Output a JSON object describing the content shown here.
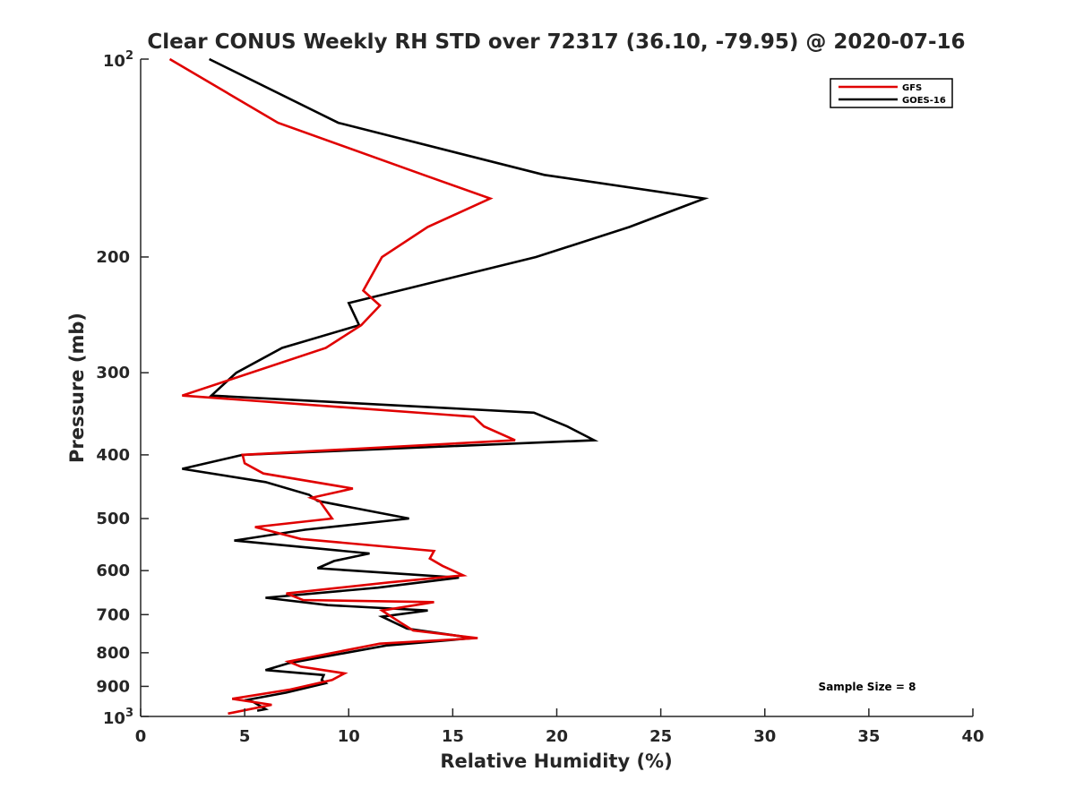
{
  "chart_data": {
    "type": "line",
    "title": "Clear CONUS Weekly RH STD over 72317 (36.10, -79.95) @ 2020-07-16",
    "xlabel": "Relative Humidity (%)",
    "ylabel": "Pressure (mb)",
    "xlim": [
      0,
      40
    ],
    "ylim": [
      100,
      1000
    ],
    "y_scale": "log",
    "y_reversed": true,
    "x_ticks": [
      "0",
      "5",
      "10",
      "15",
      "20",
      "25",
      "30",
      "35",
      "40"
    ],
    "y_ticks": [
      {
        "value": 100,
        "label": "10",
        "sup": "2"
      },
      {
        "value": 200,
        "label": "200"
      },
      {
        "value": 300,
        "label": "300"
      },
      {
        "value": 400,
        "label": "400"
      },
      {
        "value": 500,
        "label": "500"
      },
      {
        "value": 600,
        "label": "600"
      },
      {
        "value": 700,
        "label": "700"
      },
      {
        "value": 800,
        "label": "800"
      },
      {
        "value": 900,
        "label": "900"
      },
      {
        "value": 1000,
        "label": "10",
        "sup": "3"
      }
    ],
    "grid": false,
    "legend_position": "top-right",
    "annotation": "Sample Size = 8",
    "series": [
      {
        "name": "GFS",
        "color": "#e00000",
        "points": [
          [
            1.4,
            100
          ],
          [
            6.6,
            125
          ],
          [
            13.6,
            150
          ],
          [
            16.8,
            163
          ],
          [
            13.8,
            180
          ],
          [
            11.6,
            200
          ],
          [
            10.7,
            225
          ],
          [
            11.5,
            237
          ],
          [
            10.6,
            254
          ],
          [
            8.9,
            275
          ],
          [
            2.0,
            325
          ],
          [
            16.0,
            350
          ],
          [
            16.5,
            362
          ],
          [
            18.0,
            380
          ],
          [
            4.9,
            400
          ],
          [
            5.0,
            412
          ],
          [
            5.9,
            427
          ],
          [
            10.2,
            450
          ],
          [
            8.2,
            465
          ],
          [
            8.6,
            470
          ],
          [
            9.2,
            500
          ],
          [
            5.5,
            515
          ],
          [
            7.7,
            537
          ],
          [
            14.1,
            560
          ],
          [
            13.9,
            575
          ],
          [
            14.5,
            590
          ],
          [
            15.5,
            610
          ],
          [
            12.0,
            625
          ],
          [
            7.0,
            650
          ],
          [
            7.8,
            665
          ],
          [
            14.1,
            670
          ],
          [
            11.6,
            690
          ],
          [
            12.5,
            720
          ],
          [
            13.1,
            740
          ],
          [
            16.2,
            760
          ],
          [
            11.5,
            775
          ],
          [
            7.1,
            825
          ],
          [
            7.7,
            840
          ],
          [
            9.8,
            860
          ],
          [
            9.2,
            880
          ],
          [
            7.2,
            910
          ],
          [
            4.4,
            940
          ],
          [
            6.3,
            960
          ],
          [
            4.2,
            990
          ]
        ]
      },
      {
        "name": "GOES-16",
        "color": "#000000",
        "points": [
          [
            3.3,
            100
          ],
          [
            9.5,
            125
          ],
          [
            19.4,
            150
          ],
          [
            27.1,
            163
          ],
          [
            23.5,
            180
          ],
          [
            19.0,
            200
          ],
          [
            10.0,
            235
          ],
          [
            10.5,
            254
          ],
          [
            6.8,
            275
          ],
          [
            4.6,
            300
          ],
          [
            3.4,
            325
          ],
          [
            18.9,
            345
          ],
          [
            20.5,
            362
          ],
          [
            21.8,
            380
          ],
          [
            4.9,
            400
          ],
          [
            2.0,
            420
          ],
          [
            6.0,
            440
          ],
          [
            8.1,
            460
          ],
          [
            8.5,
            470
          ],
          [
            12.9,
            500
          ],
          [
            7.9,
            520
          ],
          [
            4.5,
            540
          ],
          [
            11.0,
            565
          ],
          [
            9.3,
            580
          ],
          [
            8.5,
            595
          ],
          [
            15.3,
            615
          ],
          [
            11.4,
            637
          ],
          [
            6.0,
            660
          ],
          [
            9.0,
            677
          ],
          [
            13.8,
            690
          ],
          [
            11.6,
            705
          ],
          [
            12.8,
            735
          ],
          [
            16.0,
            760
          ],
          [
            11.8,
            780
          ],
          [
            7.1,
            830
          ],
          [
            6.0,
            850
          ],
          [
            8.8,
            865
          ],
          [
            8.7,
            880
          ],
          [
            8.9,
            890
          ],
          [
            7.0,
            920
          ],
          [
            5.0,
            945
          ],
          [
            5.4,
            950
          ],
          [
            6.0,
            975
          ],
          [
            5.6,
            980
          ]
        ]
      }
    ]
  }
}
